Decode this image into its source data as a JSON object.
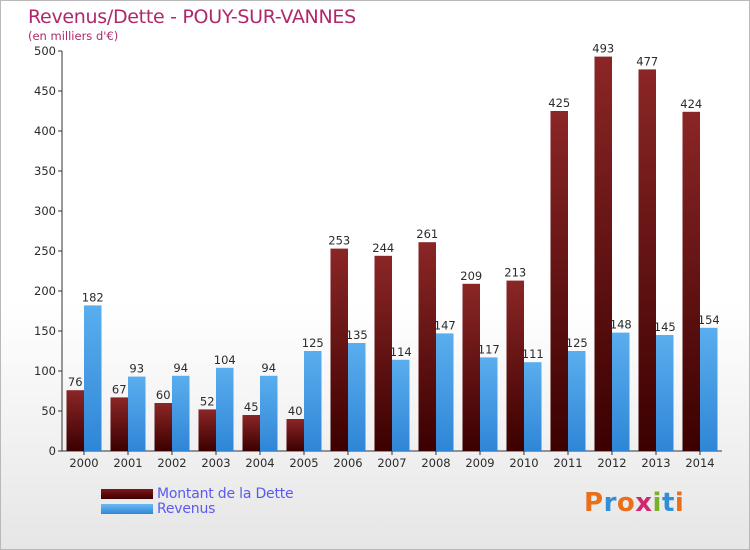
{
  "chart_data": {
    "type": "bar",
    "title": "Revenus/Dette - POUY-SUR-VANNES",
    "subtitle": "(en milliers d'€)",
    "categories": [
      "2000",
      "2001",
      "2002",
      "2003",
      "2004",
      "2005",
      "2006",
      "2007",
      "2008",
      "2009",
      "2010",
      "2011",
      "2012",
      "2013",
      "2014"
    ],
    "series": [
      {
        "name": "Montant de la Dette",
        "color": "#7f1818",
        "values": [
          76,
          67,
          60,
          52,
          45,
          40,
          253,
          244,
          261,
          209,
          213,
          425,
          493,
          477,
          424
        ]
      },
      {
        "name": "Revenus",
        "color": "#3e9be6",
        "values": [
          182,
          93,
          94,
          104,
          94,
          125,
          135,
          114,
          147,
          117,
          111,
          125,
          148,
          145,
          154
        ]
      }
    ],
    "ylim": [
      0,
      500
    ],
    "yticks": [
      0,
      50,
      100,
      150,
      200,
      250,
      300,
      350,
      400,
      450,
      500
    ],
    "grid": false,
    "legend": "bottom-left"
  },
  "brand": {
    "logo_text": "Proxiti"
  }
}
